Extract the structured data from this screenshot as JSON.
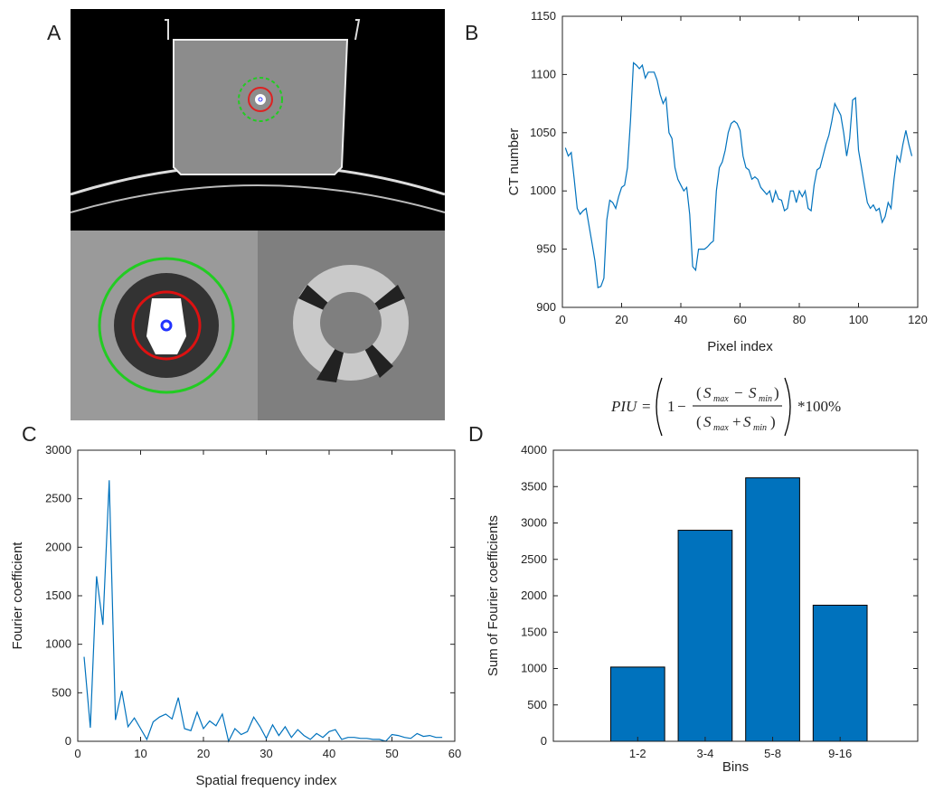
{
  "panel_labels": [
    "A",
    "B",
    "C",
    "D"
  ],
  "formula": {
    "lhs": "PIU",
    "equals": "=",
    "one": "1",
    "minus": "−",
    "plus": "+",
    "s": "S",
    "max": "max",
    "min": "min",
    "suffix": "*100%"
  },
  "chart_data": [
    {
      "type": "line",
      "x_label": "Pixel index",
      "y_label": "CT number",
      "color": "#0072bd",
      "xlim": [
        0,
        120
      ],
      "xticks": [
        0,
        20,
        40,
        60,
        80,
        100,
        120
      ],
      "ylim": [
        900,
        1150
      ],
      "yticks": [
        900,
        950,
        1000,
        1050,
        1100,
        1150
      ],
      "x": [
        1,
        2,
        3,
        4,
        5,
        6,
        7,
        8,
        9,
        10,
        11,
        12,
        13,
        14,
        15,
        16,
        17,
        18,
        19,
        20,
        21,
        22,
        23,
        24,
        25,
        26,
        27,
        28,
        29,
        30,
        31,
        32,
        33,
        34,
        35,
        36,
        37,
        38,
        39,
        40,
        41,
        42,
        43,
        44,
        45,
        46,
        47,
        48,
        49,
        50,
        51,
        52,
        53,
        54,
        55,
        56,
        57,
        58,
        59,
        60,
        61,
        62,
        63,
        64,
        65,
        66,
        67,
        68,
        69,
        70,
        71,
        72,
        73,
        74,
        75,
        76,
        77,
        78,
        79,
        80,
        81,
        82,
        83,
        84,
        85,
        86,
        87,
        88,
        89,
        90,
        91,
        92,
        93,
        94,
        95,
        96,
        97,
        98,
        99,
        100,
        101,
        102,
        103,
        104,
        105,
        106,
        107,
        108,
        109,
        110,
        111,
        112,
        113,
        114,
        115,
        116,
        117,
        118
      ],
      "values": [
        1037,
        1030,
        1033,
        1010,
        985,
        980,
        983,
        985,
        970,
        955,
        940,
        917,
        918,
        925,
        975,
        992,
        990,
        985,
        995,
        1003,
        1005,
        1020,
        1060,
        1110,
        1108,
        1105,
        1108,
        1097,
        1102,
        1102,
        1102,
        1095,
        1083,
        1075,
        1080,
        1050,
        1045,
        1020,
        1010,
        1005,
        1000,
        1003,
        980,
        935,
        932,
        950,
        950,
        950,
        952,
        955,
        957,
        1000,
        1020,
        1025,
        1035,
        1050,
        1058,
        1060,
        1058,
        1052,
        1030,
        1020,
        1018,
        1010,
        1012,
        1010,
        1003,
        1000,
        997,
        1000,
        990,
        1000,
        993,
        992,
        983,
        985,
        1000,
        1000,
        990,
        1000,
        995,
        1000,
        985,
        983,
        1005,
        1018,
        1020,
        1030,
        1040,
        1048,
        1060,
        1075,
        1070,
        1065,
        1050,
        1030,
        1045,
        1078,
        1080,
        1035,
        1020,
        1005,
        990,
        985,
        988,
        983,
        985,
        973,
        978,
        990,
        985,
        1010,
        1030,
        1025,
        1040,
        1052,
        1040,
        1030
      ]
    },
    {
      "type": "line",
      "x_label": "Spatial frequency index",
      "y_label": "Fourier coefficient",
      "color": "#0072bd",
      "xlim": [
        0,
        60
      ],
      "xticks": [
        0,
        10,
        20,
        30,
        40,
        50,
        60
      ],
      "ylim": [
        0,
        3000
      ],
      "yticks": [
        0,
        500,
        1000,
        1500,
        2000,
        2500,
        3000
      ],
      "x": [
        1,
        2,
        3,
        4,
        5,
        6,
        7,
        8,
        9,
        10,
        11,
        12,
        13,
        14,
        15,
        16,
        17,
        18,
        19,
        20,
        21,
        22,
        23,
        24,
        25,
        26,
        27,
        28,
        29,
        30,
        31,
        32,
        33,
        34,
        35,
        36,
        37,
        38,
        39,
        40,
        41,
        42,
        43,
        44,
        45,
        46,
        47,
        48,
        49,
        50,
        51,
        52,
        53,
        54,
        55,
        56,
        57,
        58
      ],
      "values": [
        870,
        140,
        1700,
        1200,
        2690,
        220,
        520,
        150,
        240,
        130,
        20,
        200,
        250,
        280,
        230,
        450,
        130,
        110,
        300,
        130,
        210,
        160,
        280,
        0,
        130,
        70,
        100,
        250,
        150,
        30,
        170,
        60,
        150,
        40,
        120,
        60,
        20,
        80,
        40,
        100,
        120,
        20,
        40,
        40,
        30,
        30,
        20,
        20,
        0,
        70,
        60,
        40,
        30,
        80,
        50,
        60,
        40,
        40
      ]
    },
    {
      "type": "bar",
      "x_label": "Bins",
      "y_label": "Sum of Fourier coefficients",
      "color": "#0072bd",
      "categories": [
        "1-2",
        "3-4",
        "5-8",
        "9-16"
      ],
      "values": [
        1020,
        2900,
        3620,
        1870
      ],
      "ylim": [
        0,
        4000
      ],
      "yticks": [
        0,
        500,
        1000,
        1500,
        2000,
        2500,
        3000,
        3500,
        4000
      ]
    }
  ]
}
